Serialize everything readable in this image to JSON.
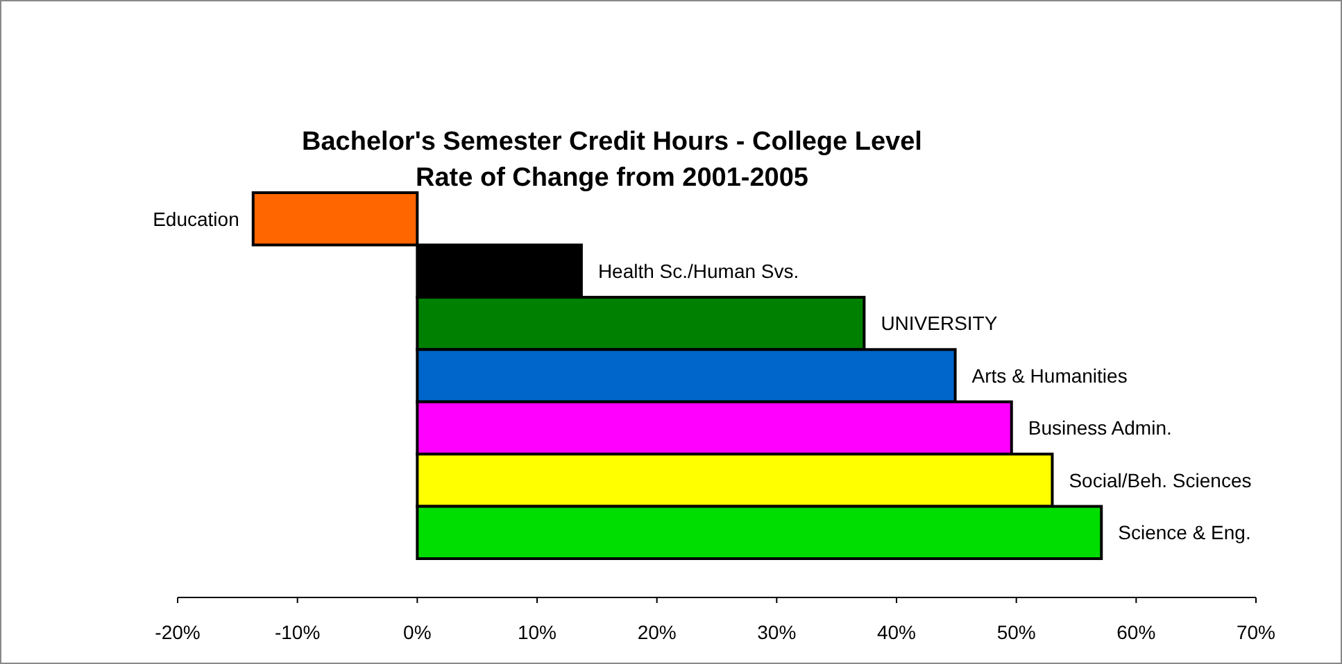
{
  "chart_data": {
    "type": "bar",
    "orientation": "horizontal",
    "title": "Bachelor's Semester Credit Hours  - College Level",
    "subtitle": "Rate of Change from 2001-2005",
    "categories": [
      "Education",
      "Health Sc./Human Svs.",
      "UNIVERSITY",
      "Arts & Humanities",
      "Business Admin.",
      "Social/Beh. Sciences",
      "Science & Eng."
    ],
    "values": [
      -13.7,
      13.7,
      37.3,
      44.9,
      49.6,
      53.0,
      57.1
    ],
    "colors": [
      "#ff6600",
      "#000000",
      "#008000",
      "#0066cc",
      "#ff00ff",
      "#ffff00",
      "#00dd00"
    ],
    "xlim": [
      -20,
      70
    ],
    "xticks": [
      {
        "value": -20,
        "label": "-20%"
      },
      {
        "value": -10,
        "label": "-10%"
      },
      {
        "value": 0,
        "label": "0%"
      },
      {
        "value": 10,
        "label": "10%"
      },
      {
        "value": 20,
        "label": "20%"
      },
      {
        "value": 30,
        "label": "30%"
      },
      {
        "value": 40,
        "label": "40%"
      },
      {
        "value": 50,
        "label": "50%"
      },
      {
        "value": 60,
        "label": "60%"
      },
      {
        "value": 70,
        "label": "70%"
      }
    ],
    "grid": false
  }
}
